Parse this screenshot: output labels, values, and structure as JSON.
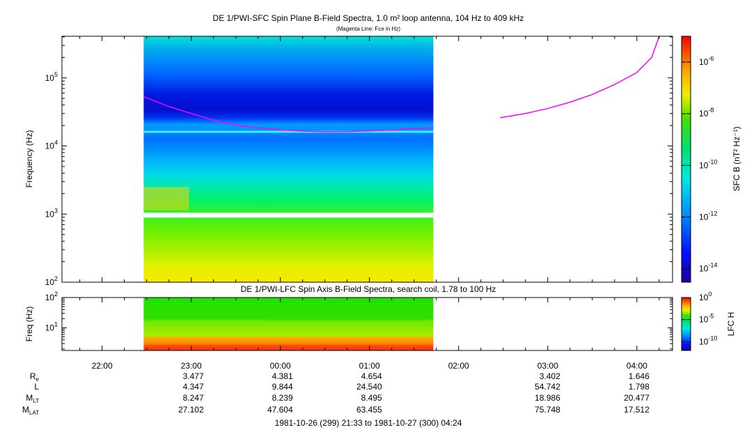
{
  "chart_data": [
    {
      "type": "heatmap",
      "title": "DE 1/PWI-SFC  Spin Plane B-Field Spectra, 1.0 m² loop antenna, 104 Hz to 409 kHz",
      "subtitle": "(Magenta Line: Fce in Hz)",
      "ylabel": "Frequency (Hz)",
      "yscale": "log",
      "ylim": [
        100,
        409000
      ],
      "y_ticks": [
        {
          "base": "10",
          "exp": "2"
        },
        {
          "base": "10",
          "exp": "3"
        },
        {
          "base": "10",
          "exp": "4"
        },
        {
          "base": "10",
          "exp": "5"
        }
      ],
      "data_time_range": [
        "22:28",
        "01:43"
      ],
      "colorbar": {
        "label": "SFC B (nT² Hz⁻¹)",
        "scale": "log",
        "range": [
          3e-15,
          1e-05
        ],
        "ticks": [
          {
            "base": "10",
            "exp": "-6"
          },
          {
            "base": "10",
            "exp": "-8"
          },
          {
            "base": "10",
            "exp": "-10"
          },
          {
            "base": "10",
            "exp": "-12"
          },
          {
            "base": "10",
            "exp": "-14"
          }
        ]
      },
      "series": [
        {
          "name": "Fce",
          "color": "#ff00ff",
          "segments": [
            [
              [
                "22:28",
                53000
              ],
              [
                "22:45",
                38000
              ],
              [
                "23:00",
                30000
              ],
              [
                "23:15",
                24000
              ],
              [
                "23:30",
                20500
              ],
              [
                "23:45",
                18500
              ],
              [
                "00:00",
                17200
              ],
              [
                "00:15",
                16600
              ],
              [
                "00:30",
                16200
              ],
              [
                "00:45",
                16300
              ],
              [
                "01:00",
                16700
              ],
              [
                "01:15",
                17200
              ],
              [
                "01:30",
                18000
              ],
              [
                "01:43",
                18500
              ]
            ],
            [
              [
                "02:28",
                26000
              ],
              [
                "02:45",
                30000
              ],
              [
                "03:00",
                35500
              ],
              [
                "03:15",
                44000
              ],
              [
                "03:30",
                57000
              ],
              [
                "03:45",
                80000
              ],
              [
                "04:00",
                120000
              ],
              [
                "04:10",
                200000
              ],
              [
                "04:15",
                409000
              ]
            ]
          ]
        }
      ]
    },
    {
      "type": "heatmap",
      "title": "DE 1/PWI-LFC  Spin Axis B-Field Spectra, search coil, 1.78 to 100 Hz",
      "ylabel": "Freq (Hz)",
      "yscale": "log",
      "ylim": [
        1.78,
        100
      ],
      "y_ticks": [
        {
          "base": "10",
          "exp": "1"
        },
        {
          "base": "10",
          "exp": "2"
        }
      ],
      "data_time_range": [
        "22:28",
        "01:43"
      ],
      "colorbar": {
        "label": "LFC H",
        "scale": "log",
        "range": [
          1e-12,
          1
        ],
        "ticks": [
          {
            "base": "10",
            "exp": "0"
          },
          {
            "base": "10",
            "exp": "-5"
          },
          {
            "base": "10",
            "exp": "-10"
          }
        ]
      }
    }
  ],
  "time_axis": {
    "range": [
      "21:33",
      "04:24"
    ],
    "ticks": [
      "22:00",
      "23:00",
      "00:00",
      "01:00",
      "02:00",
      "03:00",
      "04:00"
    ]
  },
  "ephemeris": [
    {
      "label": "R",
      "sub": "e",
      "values": [
        "3.477",
        "4.381",
        "4.654",
        "",
        "3.402",
        "1.646"
      ]
    },
    {
      "label": "L",
      "sub": "",
      "values": [
        "4.347",
        "9.844",
        "24.540",
        "",
        "54.742",
        "1.798"
      ]
    },
    {
      "label": "M",
      "sub": "LT",
      "values": [
        "8.247",
        "8.239",
        "8.495",
        "",
        "18.986",
        "20.477"
      ]
    },
    {
      "label": "M",
      "sub": "LAT",
      "values": [
        "27.102",
        "47.604",
        "63.455",
        "",
        "75.748",
        "17.512"
      ]
    }
  ],
  "ephemeris_times": [
    "23:00",
    "00:00",
    "01:00",
    "02:00",
    "03:00",
    "04:00"
  ],
  "footer": "1981-10-26 (299) 21:33 to 1981-10-27 (300) 04:24"
}
